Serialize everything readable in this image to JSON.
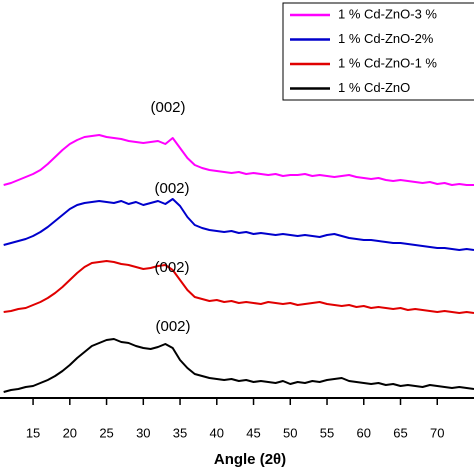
{
  "chart_data": {
    "type": "line",
    "xlabel": "Angle (2θ)",
    "xlim": [
      10.5,
      75
    ],
    "xticks": [
      15,
      20,
      25,
      30,
      35,
      40,
      45,
      50,
      55,
      60,
      65,
      70
    ],
    "ylim": [
      0,
      398
    ],
    "legend": "upper right",
    "annotations": [
      "(002)",
      "(002)",
      "(002)",
      "(002)"
    ],
    "x": [
      11,
      12,
      13,
      14,
      15,
      16,
      17,
      18,
      19,
      20,
      21,
      22,
      23,
      24,
      25,
      26,
      27,
      28,
      29,
      30,
      31,
      32,
      33,
      34,
      35,
      36,
      37,
      38,
      39,
      40,
      41,
      42,
      43,
      44,
      45,
      46,
      47,
      48,
      49,
      50,
      51,
      52,
      53,
      54,
      55,
      56,
      57,
      58,
      59,
      60,
      61,
      62,
      63,
      64,
      65,
      66,
      67,
      68,
      69,
      70,
      71,
      72,
      73,
      74,
      75
    ],
    "series": [
      {
        "name": "1 % Cd-ZnO-3 %",
        "color": "#ff00ff",
        "values": [
          213,
          215,
          218,
          221,
          224,
          228,
          234,
          241,
          248,
          254,
          258,
          261,
          262,
          263,
          261,
          260,
          259,
          257,
          256,
          255,
          256,
          257,
          254,
          260,
          250,
          240,
          233,
          230,
          228,
          227,
          226,
          225,
          226,
          224,
          225,
          224,
          223,
          224,
          222,
          223,
          223,
          224,
          222,
          223,
          222,
          221,
          222,
          223,
          221,
          220,
          219,
          220,
          218,
          217,
          218,
          217,
          216,
          215,
          216,
          214,
          215,
          213,
          214,
          213,
          213
        ]
      },
      {
        "name": "1 % Cd-ZnO-2%",
        "color": "#0000cc",
        "values": [
          153,
          155,
          157,
          159,
          162,
          166,
          171,
          177,
          183,
          189,
          193,
          195,
          196,
          197,
          196,
          195,
          197,
          194,
          196,
          193,
          195,
          197,
          194,
          199,
          192,
          181,
          173,
          170,
          168,
          167,
          166,
          167,
          165,
          166,
          164,
          165,
          164,
          163,
          164,
          163,
          162,
          163,
          162,
          161,
          163,
          164,
          162,
          160,
          159,
          158,
          158,
          157,
          156,
          155,
          155,
          154,
          153,
          152,
          151,
          150,
          150,
          149,
          148,
          149,
          148
        ]
      },
      {
        "name": "1 % Cd-ZnO-1 %",
        "color": "#e00000",
        "values": [
          86,
          87,
          89,
          90,
          93,
          96,
          100,
          105,
          111,
          118,
          125,
          131,
          135,
          136,
          137,
          136,
          134,
          133,
          131,
          129,
          130,
          132,
          133,
          128,
          118,
          108,
          101,
          99,
          97,
          98,
          96,
          97,
          95,
          96,
          95,
          94,
          96,
          95,
          94,
          95,
          93,
          94,
          95,
          96,
          94,
          93,
          92,
          93,
          91,
          92,
          90,
          91,
          90,
          89,
          90,
          88,
          89,
          88,
          87,
          86,
          87,
          86,
          85,
          86,
          85
        ]
      },
      {
        "name": "1 % Cd-ZnO",
        "color": "#000000",
        "values": [
          6,
          8,
          9,
          11,
          12,
          15,
          18,
          22,
          27,
          33,
          40,
          46,
          52,
          55,
          58,
          59,
          56,
          55,
          52,
          50,
          49,
          51,
          54,
          50,
          38,
          30,
          24,
          22,
          20,
          19,
          18,
          19,
          17,
          18,
          16,
          17,
          16,
          15,
          17,
          14,
          16,
          15,
          17,
          16,
          18,
          19,
          20,
          17,
          16,
          15,
          14,
          15,
          13,
          14,
          12,
          13,
          12,
          11,
          13,
          12,
          11,
          10,
          11,
          10,
          9
        ]
      }
    ]
  }
}
